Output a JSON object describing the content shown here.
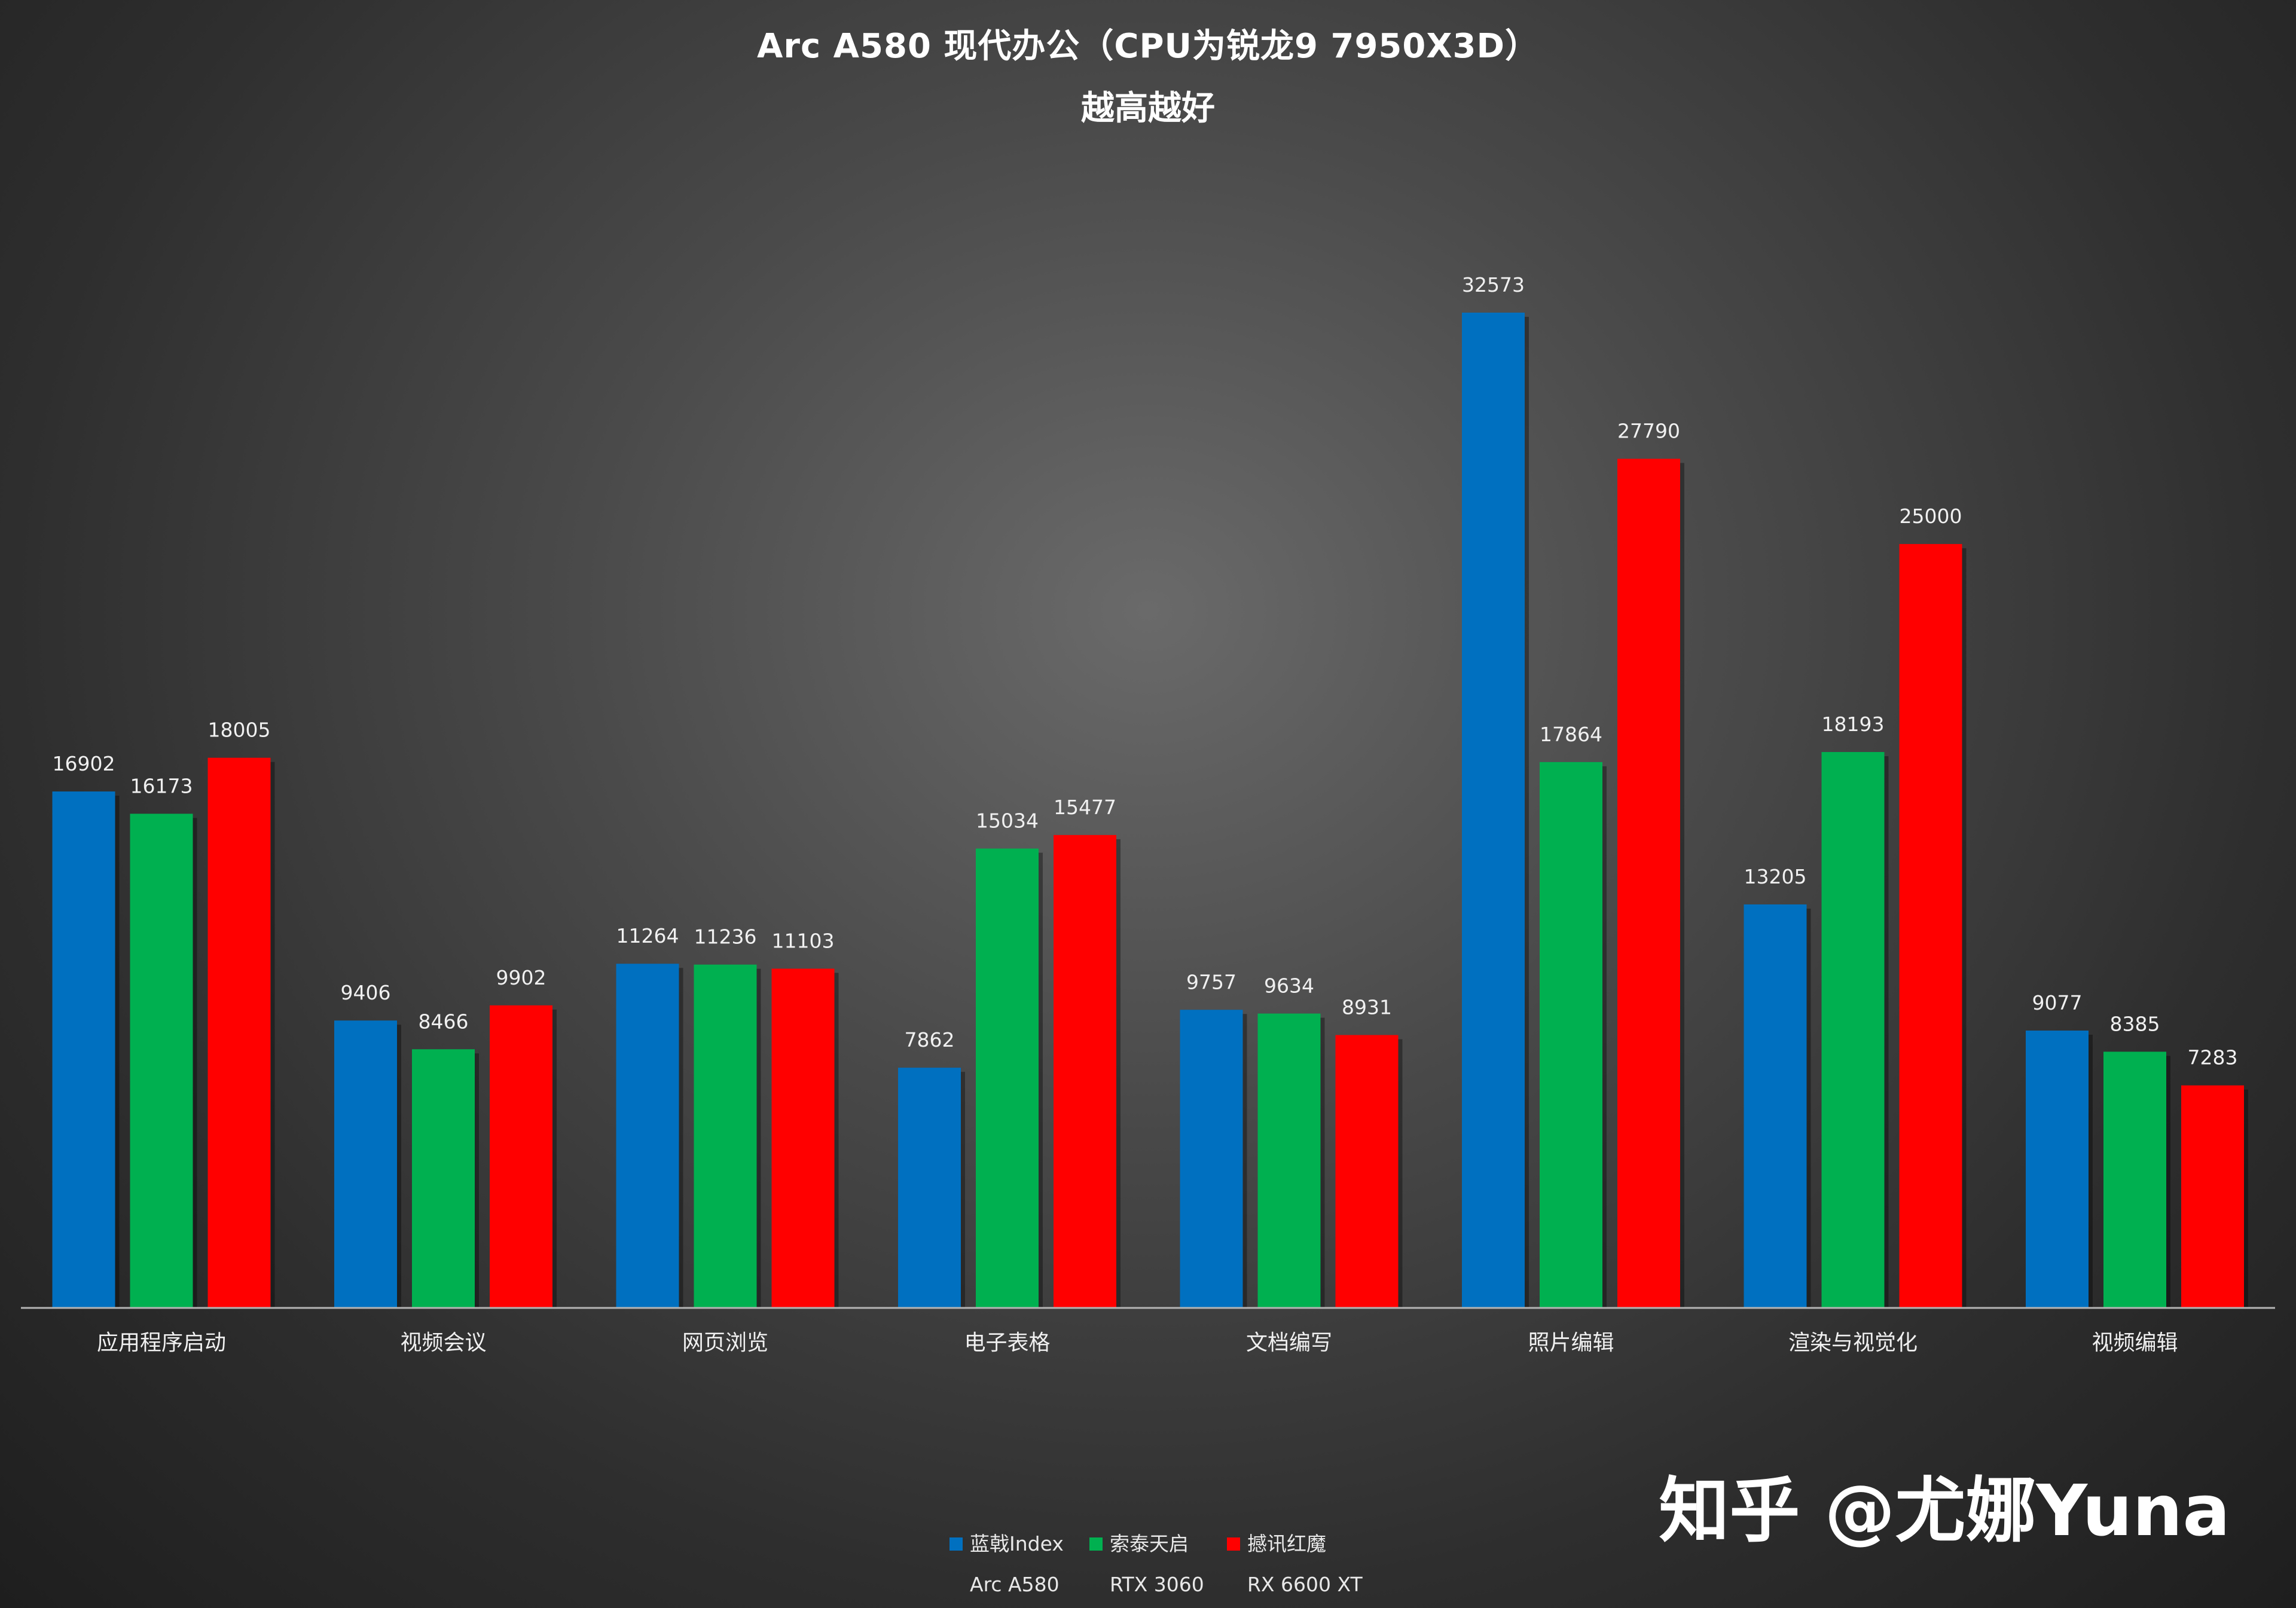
{
  "chart_data": {
    "type": "bar",
    "title": "Arc A580 现代办公（CPU为锐龙9 7950X3D）",
    "subtitle": "越高越好",
    "categories": [
      "应用程序启动",
      "视频会议",
      "网页浏览",
      "电子表格",
      "文档编写",
      "照片编辑",
      "渲染与视觉化",
      "视频编辑"
    ],
    "series": [
      {
        "name": "蓝戟Index",
        "sub": "Arc A580",
        "color": "#0070c0",
        "values": [
          16902,
          9406,
          11264,
          7862,
          9757,
          32573,
          13205,
          9077
        ]
      },
      {
        "name": "索泰天启",
        "sub": "RTX 3060",
        "color": "#00b050",
        "values": [
          16173,
          8466,
          11236,
          15034,
          9634,
          17864,
          18193,
          8385
        ]
      },
      {
        "name": "撼讯红魔",
        "sub": "RX 6600 XT",
        "color": "#ff0000",
        "values": [
          18005,
          9902,
          11103,
          15477,
          8931,
          27790,
          25000,
          7283
        ]
      }
    ],
    "ylim": [
      0,
      32573
    ],
    "grid": false,
    "legend_position": "bottom-center"
  },
  "watermark": "知乎 @尤娜Yuna"
}
